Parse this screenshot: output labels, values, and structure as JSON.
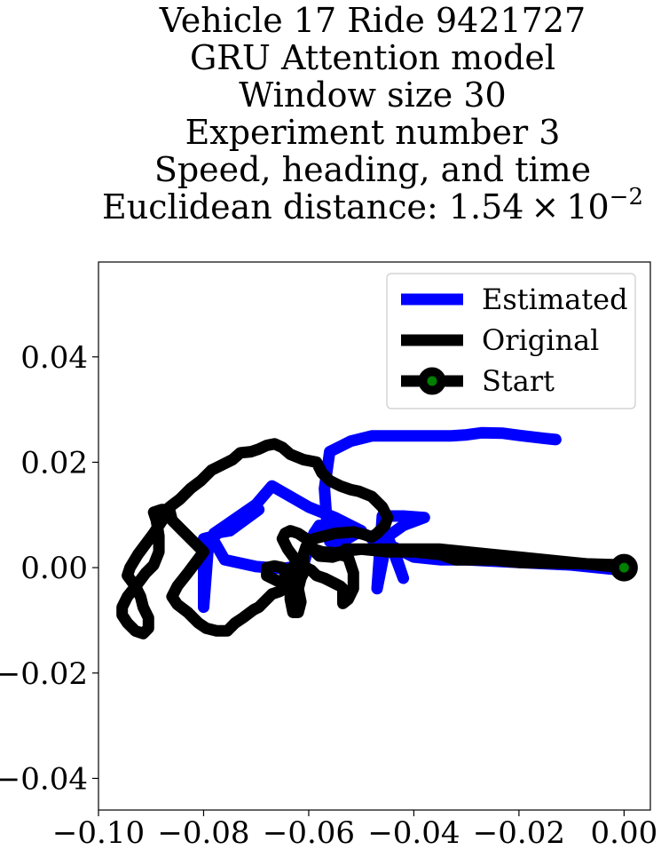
{
  "chart_data": {
    "type": "line",
    "title_lines": [
      "Vehicle 17 Ride 9421727",
      "GRU Attention model",
      "Window size 30",
      "Experiment number 3",
      "Speed, heading, and time"
    ],
    "title_metric_prefix": "Euclidean distance: ",
    "title_metric_mantissa": "1.54",
    "title_metric_times": "×",
    "title_metric_base": "10",
    "title_metric_exponent": "−2",
    "xlabel": "",
    "ylabel": "",
    "xlim": [
      -0.1,
      0.005
    ],
    "ylim": [
      -0.046,
      0.058
    ],
    "x_ticks": [
      -0.1,
      -0.08,
      -0.06,
      -0.04,
      -0.02,
      0.0
    ],
    "x_tick_labels": [
      "−0.10",
      "−0.08",
      "−0.06",
      "−0.04",
      "−0.02",
      "0.00"
    ],
    "y_ticks": [
      0.04,
      0.02,
      0.0,
      -0.02,
      -0.04
    ],
    "y_tick_labels": [
      "0.04",
      "0.02",
      "0.00",
      "−0.02",
      "−0.04"
    ],
    "grid": false,
    "legend_position": "top-right",
    "series": [
      {
        "name": "Estimated",
        "color": "#0000ff",
        "points": [
          [
            0.0,
            -0.0005
          ],
          [
            -0.01,
            0.0005
          ],
          [
            -0.02,
            0.001
          ],
          [
            -0.03,
            0.0015
          ],
          [
            -0.035,
            0.0015
          ],
          [
            -0.04,
            0.002
          ],
          [
            -0.044,
            0.004
          ],
          [
            -0.046,
            0.006
          ],
          [
            -0.048,
            0.0055
          ],
          [
            -0.047,
            0.0045
          ],
          [
            -0.042,
            0.008
          ],
          [
            -0.038,
            0.0095
          ],
          [
            -0.042,
            0.0098
          ],
          [
            -0.046,
            0.0098
          ],
          [
            -0.047,
            -0.004
          ],
          [
            -0.045,
            0.006
          ],
          [
            -0.042,
            -0.002
          ],
          [
            -0.044,
            0.004
          ],
          [
            -0.052,
            0.0075
          ],
          [
            -0.058,
            0.008
          ],
          [
            -0.059,
            0.0065
          ],
          [
            -0.06,
            0.004
          ],
          [
            -0.061,
            0.0005
          ],
          [
            -0.065,
            -0.0002
          ],
          [
            -0.07,
            0.0002
          ],
          [
            -0.076,
            0.0015
          ],
          [
            -0.078,
            0.005
          ],
          [
            -0.079,
            0.0055
          ],
          [
            -0.08,
            -0.0075
          ],
          [
            -0.08,
            0.0055
          ],
          [
            -0.078,
            0.006
          ],
          [
            -0.073,
            0.0095
          ],
          [
            -0.0695,
            0.011
          ],
          [
            -0.075,
            0.007
          ],
          [
            -0.078,
            0.0065
          ],
          [
            -0.07,
            0.012
          ],
          [
            -0.067,
            0.0155
          ],
          [
            -0.06,
            0.0115
          ],
          [
            -0.055,
            0.0095
          ],
          [
            -0.05,
            0.007
          ],
          [
            -0.0535,
            0.005
          ],
          [
            -0.055,
            0.0045
          ],
          [
            -0.056,
            0.005
          ],
          [
            -0.0565,
            0.008
          ],
          [
            -0.057,
            0.015
          ],
          [
            -0.056,
            0.022
          ],
          [
            -0.052,
            0.024
          ],
          [
            -0.048,
            0.025
          ],
          [
            -0.04,
            0.025
          ],
          [
            -0.033,
            0.025
          ],
          [
            -0.03,
            0.0252
          ],
          [
            -0.027,
            0.0256
          ],
          [
            -0.023,
            0.0255
          ],
          [
            -0.02,
            0.0251
          ],
          [
            -0.015,
            0.0245
          ],
          [
            -0.013,
            0.0243
          ]
        ]
      },
      {
        "name": "Original",
        "color": "#000000",
        "points": [
          [
            0.0,
            0.0005
          ],
          [
            -0.01,
            0.0008
          ],
          [
            -0.02,
            0.001
          ],
          [
            -0.025,
            0.0015
          ],
          [
            -0.032,
            0.0015
          ],
          [
            -0.035,
            0.0025
          ],
          [
            -0.04,
            0.003
          ],
          [
            -0.045,
            0.003
          ],
          [
            -0.05,
            0.0035
          ],
          [
            -0.053,
            0.0035
          ],
          [
            -0.054,
            0.0025
          ],
          [
            -0.0555,
            0.002
          ],
          [
            -0.058,
            0.0022
          ],
          [
            -0.059,
            0.0032
          ],
          [
            -0.058,
            0.0025
          ],
          [
            -0.054,
            0.0025
          ],
          [
            -0.0525,
            0.002
          ],
          [
            -0.0515,
            -0.001
          ],
          [
            -0.0515,
            -0.004
          ],
          [
            -0.0525,
            -0.006
          ],
          [
            -0.0535,
            -0.0068
          ],
          [
            -0.0535,
            -0.005
          ],
          [
            -0.0535,
            -0.004
          ],
          [
            -0.054,
            -0.0035
          ],
          [
            -0.057,
            -0.002
          ],
          [
            -0.0585,
            -0.0015
          ],
          [
            -0.0595,
            -0.0005
          ],
          [
            -0.0605,
            0.0
          ],
          [
            -0.0615,
            -0.002
          ],
          [
            -0.062,
            -0.004
          ],
          [
            -0.0615,
            -0.0065
          ],
          [
            -0.062,
            -0.0085
          ],
          [
            -0.063,
            -0.0085
          ],
          [
            -0.0635,
            -0.006
          ],
          [
            -0.0635,
            -0.004
          ],
          [
            -0.0645,
            -0.0025
          ],
          [
            -0.066,
            -0.0025
          ],
          [
            -0.068,
            -0.0015
          ],
          [
            -0.068,
            0.0
          ],
          [
            -0.0665,
            0.0003
          ],
          [
            -0.065,
            0.0
          ],
          [
            -0.0645,
            -0.001
          ],
          [
            -0.0638,
            -0.0005
          ],
          [
            -0.0625,
            0.0005
          ],
          [
            -0.061,
            0.0005
          ],
          [
            -0.061,
            0.0025
          ],
          [
            -0.0605,
            0.004
          ],
          [
            -0.059,
            0.0055
          ],
          [
            -0.057,
            0.006
          ],
          [
            -0.055,
            0.0065
          ],
          [
            -0.0515,
            0.0068
          ],
          [
            -0.0495,
            0.0063
          ],
          [
            -0.048,
            0.0058
          ],
          [
            -0.047,
            0.0065
          ],
          [
            -0.0455,
            0.008
          ],
          [
            -0.045,
            0.0095
          ],
          [
            -0.046,
            0.0115
          ],
          [
            -0.048,
            0.0135
          ],
          [
            -0.0505,
            0.0145
          ],
          [
            -0.052,
            0.0148
          ],
          [
            -0.054,
            0.0155
          ],
          [
            -0.056,
            0.0165
          ],
          [
            -0.0575,
            0.018
          ],
          [
            -0.0585,
            0.02
          ],
          [
            -0.061,
            0.0205
          ],
          [
            -0.0635,
            0.0215
          ],
          [
            -0.065,
            0.0228
          ],
          [
            -0.0665,
            0.0235
          ],
          [
            -0.068,
            0.0232
          ],
          [
            -0.0695,
            0.0225
          ],
          [
            -0.071,
            0.022
          ],
          [
            -0.073,
            0.0218
          ],
          [
            -0.0745,
            0.0205
          ],
          [
            -0.0765,
            0.0195
          ],
          [
            -0.0785,
            0.0185
          ],
          [
            -0.0805,
            0.0165
          ],
          [
            -0.0825,
            0.015
          ],
          [
            -0.0845,
            0.013
          ],
          [
            -0.0865,
            0.0115
          ],
          [
            -0.0875,
            0.0095
          ],
          [
            -0.0895,
            0.0065
          ],
          [
            -0.091,
            0.0045
          ],
          [
            -0.0925,
            0.0025
          ],
          [
            -0.094,
            0.0
          ],
          [
            -0.0945,
            -0.0015
          ],
          [
            -0.093,
            -0.0035
          ],
          [
            -0.092,
            -0.0055
          ],
          [
            -0.0915,
            -0.0075
          ],
          [
            -0.0905,
            -0.0095
          ],
          [
            -0.0905,
            -0.0115
          ],
          [
            -0.0915,
            -0.0125
          ],
          [
            -0.093,
            -0.012
          ],
          [
            -0.0945,
            -0.0105
          ],
          [
            -0.0955,
            -0.009
          ],
          [
            -0.0955,
            -0.0075
          ],
          [
            -0.0945,
            -0.0055
          ],
          [
            -0.0925,
            -0.003
          ],
          [
            -0.091,
            -0.001
          ],
          [
            -0.0895,
            0.0005
          ],
          [
            -0.0885,
            0.003
          ],
          [
            -0.0885,
            0.006
          ],
          [
            -0.089,
            0.009
          ],
          [
            -0.0895,
            0.0105
          ],
          [
            -0.088,
            0.011
          ],
          [
            -0.0865,
            0.011
          ],
          [
            -0.086,
            0.009
          ],
          [
            -0.0845,
            0.0075
          ],
          [
            -0.083,
            0.006
          ],
          [
            -0.0815,
            0.0045
          ],
          [
            -0.08,
            0.003
          ],
          [
            -0.0815,
            0.001
          ],
          [
            -0.083,
            -0.001
          ],
          [
            -0.085,
            -0.0035
          ],
          [
            -0.086,
            -0.0055
          ],
          [
            -0.085,
            -0.007
          ],
          [
            -0.083,
            -0.0085
          ],
          [
            -0.081,
            -0.0105
          ],
          [
            -0.0795,
            -0.0115
          ],
          [
            -0.0775,
            -0.012
          ],
          [
            -0.0755,
            -0.012
          ],
          [
            -0.074,
            -0.0105
          ],
          [
            -0.0725,
            -0.0095
          ],
          [
            -0.0705,
            -0.008
          ],
          [
            -0.0695,
            -0.0075
          ],
          [
            -0.0685,
            -0.0065
          ],
          [
            -0.067,
            -0.005
          ],
          [
            -0.0655,
            -0.0045
          ],
          [
            -0.064,
            -0.0035
          ],
          [
            -0.0628,
            -0.0023
          ],
          [
            -0.0618,
            -0.002
          ],
          [
            -0.062,
            -0.001
          ],
          [
            -0.0625,
            0.0015
          ],
          [
            -0.064,
            0.0035
          ],
          [
            -0.065,
            0.0055
          ],
          [
            -0.0645,
            0.0065
          ],
          [
            -0.0635,
            0.007
          ],
          [
            -0.062,
            0.0065
          ],
          [
            -0.0605,
            0.0055
          ],
          [
            -0.059,
            0.0035
          ],
          [
            -0.0575,
            0.003
          ],
          [
            -0.055,
            0.0028
          ],
          [
            -0.0525,
            0.0032
          ],
          [
            -0.05,
            0.0035
          ],
          [
            -0.045,
            0.0035
          ],
          [
            -0.04,
            0.0035
          ],
          [
            -0.035,
            0.0035
          ],
          [
            -0.03,
            0.003
          ],
          [
            -0.025,
            0.0025
          ],
          [
            -0.02,
            0.002
          ],
          [
            -0.015,
            0.0015
          ],
          [
            -0.01,
            0.001
          ],
          [
            -0.005,
            0.0005
          ],
          [
            0.0,
            0.0
          ]
        ]
      }
    ],
    "legend": [
      {
        "label": "Estimated",
        "color": "#0000ff",
        "marker": "none"
      },
      {
        "label": "Original",
        "color": "#000000",
        "marker": "none"
      },
      {
        "label": "Start",
        "color": "#000000",
        "marker": "circle",
        "marker_face": "#008000"
      }
    ],
    "start_point": {
      "name": "Start",
      "x": 0.0,
      "y": 0.0,
      "edge_color": "#000000",
      "face_color": "#008000"
    }
  }
}
